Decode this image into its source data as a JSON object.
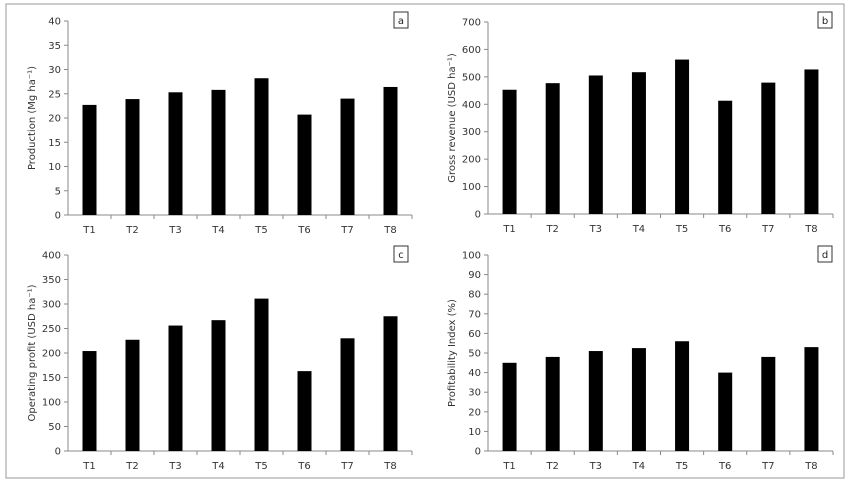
{
  "chart_data": [
    {
      "type": "bar",
      "panel": "a",
      "ylabel": "Production (Mg ha⁻¹)",
      "categories": [
        "T1",
        "T2",
        "T3",
        "T4",
        "T5",
        "T6",
        "T7",
        "T8"
      ],
      "values": [
        22.7,
        23.9,
        25.3,
        25.8,
        28.2,
        20.7,
        24.0,
        26.4
      ],
      "ylim": [
        0,
        40
      ],
      "yticks": [
        0,
        5,
        10,
        15,
        20,
        25,
        30,
        35,
        40
      ],
      "grid": false
    },
    {
      "type": "bar",
      "panel": "b",
      "ylabel": "Gross revenue (USD ha⁻¹)",
      "categories": [
        "T1",
        "T2",
        "T3",
        "T4",
        "T5",
        "T6",
        "T7",
        "T8"
      ],
      "values": [
        453,
        477,
        505,
        517,
        563,
        413,
        479,
        527
      ],
      "ylim": [
        0,
        700
      ],
      "yticks": [
        0,
        100,
        200,
        300,
        400,
        500,
        600,
        700
      ],
      "grid": false
    },
    {
      "type": "bar",
      "panel": "c",
      "ylabel": "Operating profit (USD ha⁻¹)",
      "categories": [
        "T1",
        "T2",
        "T3",
        "T4",
        "T5",
        "T6",
        "T7",
        "T8"
      ],
      "values": [
        204,
        227,
        256,
        267,
        311,
        163,
        230,
        275
      ],
      "ylim": [
        0,
        400
      ],
      "yticks": [
        0,
        50,
        100,
        150,
        200,
        250,
        300,
        350,
        400
      ],
      "grid": false
    },
    {
      "type": "bar",
      "panel": "d",
      "ylabel": "Profitability Index (%)",
      "categories": [
        "T1",
        "T2",
        "T3",
        "T4",
        "T5",
        "T6",
        "T7",
        "T8"
      ],
      "values": [
        45,
        48,
        51,
        52.5,
        56,
        40,
        48,
        53
      ],
      "ylim": [
        0,
        100
      ],
      "yticks": [
        0,
        10,
        20,
        30,
        40,
        50,
        60,
        70,
        80,
        90,
        100
      ],
      "grid": false
    }
  ]
}
